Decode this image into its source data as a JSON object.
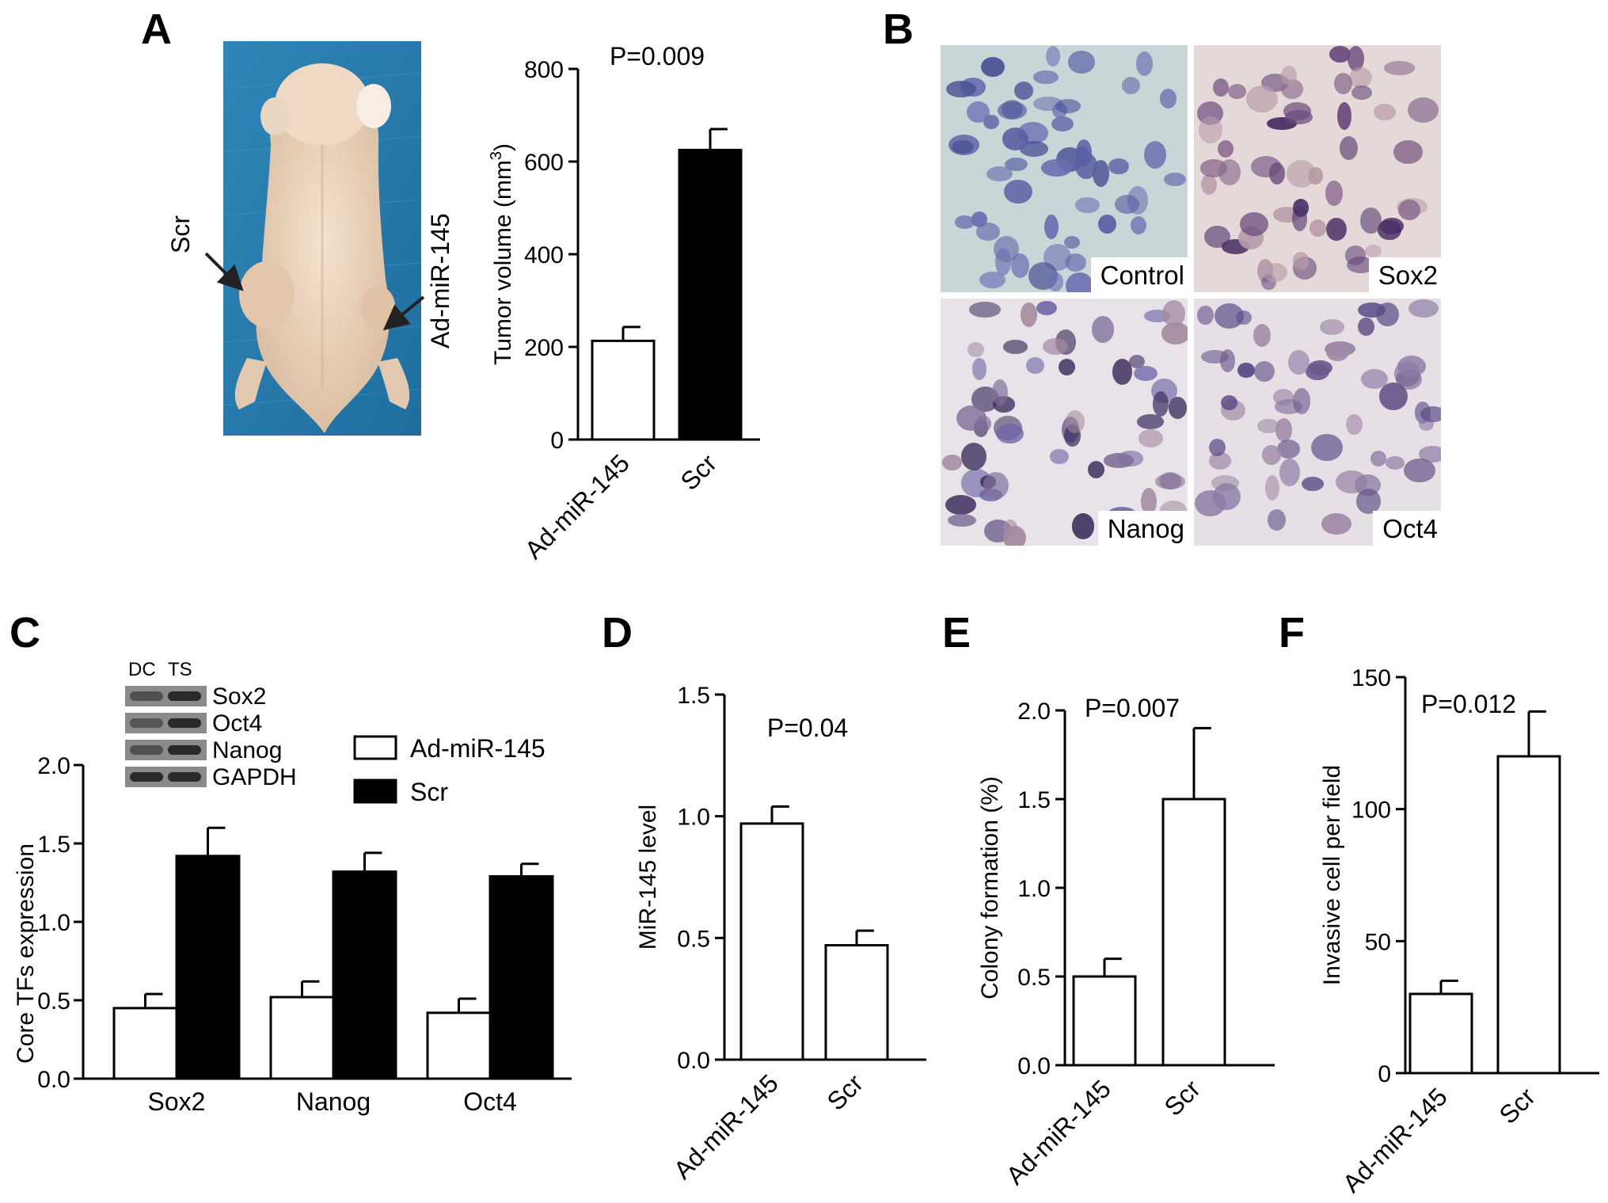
{
  "panels": {
    "A": "A",
    "B": "B",
    "C": "C",
    "D": "D",
    "E": "E",
    "F": "F"
  },
  "photo": {
    "label_scr": "Scr",
    "label_ad": "Ad-miR-145"
  },
  "ihc": {
    "tiles": [
      {
        "label": "Control",
        "tint": "#c8d6d8"
      },
      {
        "label": "Sox2",
        "tint": "#e4d9d8"
      },
      {
        "label": "Nanog",
        "tint": "#e7e3e8"
      },
      {
        "label": "Oct4",
        "tint": "#e6e0e6"
      }
    ]
  },
  "blot": {
    "lanes": [
      "DC",
      "TS"
    ],
    "rows": [
      "Sox2",
      "Oct4",
      "Nanog",
      "GAPDH"
    ],
    "intensity": [
      [
        0.6,
        1.0
      ],
      [
        0.55,
        1.0
      ],
      [
        0.6,
        1.0
      ],
      [
        1.0,
        1.0
      ]
    ]
  },
  "colors": {
    "open_bar": "#ffffff",
    "filled_bar": "#000000",
    "axis": "#000000"
  },
  "chart_data": [
    {
      "id": "A",
      "type": "bar",
      "categories": [
        "Ad-miR-145",
        "Scr"
      ],
      "values": [
        213,
        625
      ],
      "errors": [
        30,
        45
      ],
      "fills": [
        "open",
        "filled"
      ],
      "ylabel": "Tumor volume (mm3)",
      "ylim": [
        0,
        800
      ],
      "yticks": [
        "0",
        "200",
        "400",
        "600",
        "800"
      ],
      "annotation": "P=0.009"
    },
    {
      "id": "C",
      "type": "bar",
      "categories": [
        "Sox2",
        "Nanog",
        "Oct4"
      ],
      "series": [
        {
          "name": "Ad-miR-145",
          "values": [
            0.45,
            0.52,
            0.42
          ],
          "errors": [
            0.09,
            0.1,
            0.09
          ],
          "fill": "open"
        },
        {
          "name": "Scr",
          "values": [
            1.42,
            1.32,
            1.29
          ],
          "errors": [
            0.18,
            0.12,
            0.08
          ],
          "fill": "filled"
        }
      ],
      "ylabel": "Core TFs expression",
      "ylim": [
        0,
        2.0
      ],
      "yticks": [
        "0.0",
        "0.5",
        "1.0",
        "1.5",
        "2.0"
      ],
      "legend": "top-right"
    },
    {
      "id": "D",
      "type": "bar",
      "categories": [
        "Ad-miR-145",
        "Scr"
      ],
      "values": [
        0.97,
        0.47
      ],
      "errors": [
        0.07,
        0.06
      ],
      "fills": [
        "open",
        "open"
      ],
      "ylabel": "MiR-145 level",
      "ylim": [
        0,
        1.5
      ],
      "yticks": [
        "0.0",
        "0.5",
        "1.0",
        "1.5"
      ],
      "annotation": "P=0.04"
    },
    {
      "id": "E",
      "type": "bar",
      "categories": [
        "Ad-miR-145",
        "Scr"
      ],
      "values": [
        0.5,
        1.5
      ],
      "errors": [
        0.1,
        0.4
      ],
      "fills": [
        "open",
        "open"
      ],
      "ylabel": "Colony formation (%)",
      "ylim": [
        0,
        2.0
      ],
      "yticks": [
        "0.0",
        "0.5",
        "1.0",
        "1.5",
        "2.0"
      ],
      "annotation": "P=0.007"
    },
    {
      "id": "F",
      "type": "bar",
      "categories": [
        "Ad-miR-145",
        "Scr"
      ],
      "values": [
        30,
        120
      ],
      "errors": [
        5,
        17
      ],
      "fills": [
        "open",
        "open"
      ],
      "ylabel": "Invasive cell per field",
      "ylim": [
        0,
        150
      ],
      "yticks": [
        "0",
        "50",
        "100",
        "150"
      ],
      "annotation": "P=0.012"
    }
  ]
}
